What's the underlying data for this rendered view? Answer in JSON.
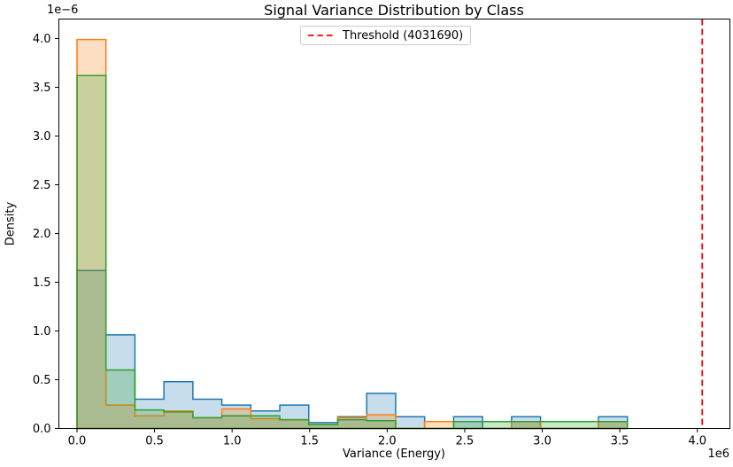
{
  "chart_data": {
    "type": "histogram",
    "title": "Signal Variance Distribution by Class",
    "xlabel": "Variance (Energy)",
    "ylabel": "Density",
    "x_offset_text": "1e6",
    "y_offset_text": "1e−6",
    "legend": {
      "position": "upper center",
      "entries": [
        {
          "label": "Threshold (4031690)",
          "color": "#ff0000",
          "linestyle": "dashed"
        }
      ]
    },
    "threshold": {
      "value": 4031690,
      "color": "#ff0000",
      "linestyle": "dashed"
    },
    "grid": false,
    "bin_start": 0,
    "bin_width": 186800,
    "xlim": [
      -117000,
      4210000
    ],
    "ylim_1e6": [
      0,
      4.2
    ],
    "x_ticks": [
      "0.0",
      "0.5",
      "1.0",
      "1.5",
      "2.0",
      "2.5",
      "3.0",
      "3.5",
      "4.0"
    ],
    "y_ticks": [
      "0.0",
      "0.5",
      "1.0",
      "1.5",
      "2.0",
      "2.5",
      "3.0",
      "3.5",
      "4.0"
    ],
    "series": [
      {
        "name": "blue",
        "edge_color": "#1f77b4",
        "fill_alpha": 0.25,
        "densities_1e6": [
          1.62,
          0.96,
          0.3,
          0.48,
          0.3,
          0.24,
          0.18,
          0.24,
          0.06,
          0.12,
          0.36,
          0.12,
          0,
          0.12,
          0,
          0.12,
          0,
          0,
          0.12
        ]
      },
      {
        "name": "orange",
        "edge_color": "#ff7f0e",
        "fill_alpha": 0.25,
        "densities_1e6": [
          3.99,
          0.24,
          0.13,
          0.18,
          0.11,
          0.2,
          0.1,
          0.09,
          0.04,
          0.11,
          0.14,
          0,
          0.07,
          0,
          0,
          0.07,
          0,
          0,
          0.07
        ]
      },
      {
        "name": "green",
        "edge_color": "#2ca02c",
        "fill_alpha": 0.25,
        "densities_1e6": [
          3.62,
          0.6,
          0.19,
          0.17,
          0.11,
          0.13,
          0.13,
          0.09,
          0.04,
          0.09,
          0.08,
          0,
          0,
          0.07,
          0.07,
          0.07,
          0.07,
          0.07,
          0.07
        ]
      }
    ]
  }
}
